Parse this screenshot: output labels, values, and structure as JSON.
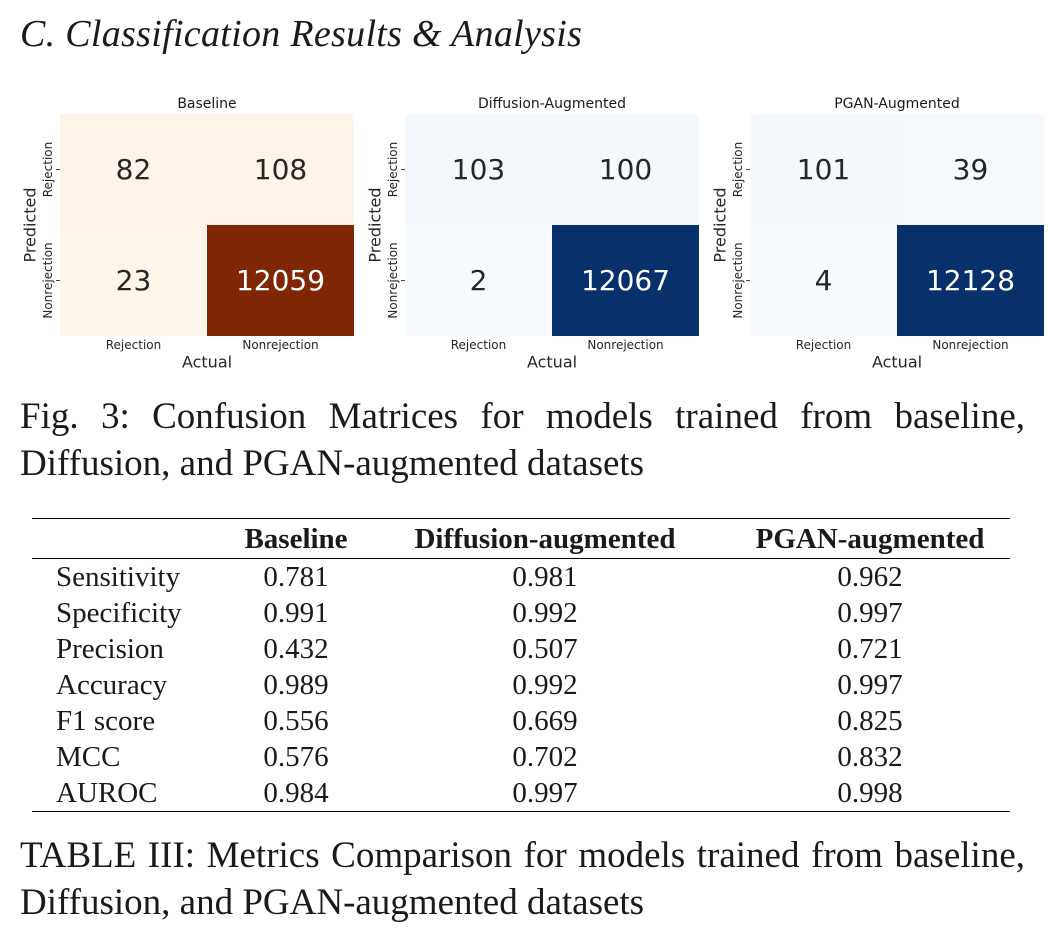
{
  "section_title": "C.  Classification Results & Analysis",
  "chart_data": [
    {
      "type": "heatmap",
      "title": "Baseline",
      "xlabel": "Actual",
      "ylabel": "Predicted",
      "x_categories": [
        "Rejection",
        "Nonrejection"
      ],
      "y_categories": [
        "Rejection",
        "Nonrejection"
      ],
      "values": [
        [
          82,
          108
        ],
        [
          23,
          12059
        ]
      ],
      "colormap": "Oranges",
      "colors": {
        "low": "#fff5eb",
        "high": "#7f2704"
      }
    },
    {
      "type": "heatmap",
      "title": "Diffusion-Augmented",
      "xlabel": "Actual",
      "ylabel": "Predicted",
      "x_categories": [
        "Rejection",
        "Nonrejection"
      ],
      "y_categories": [
        "Rejection",
        "Nonrejection"
      ],
      "values": [
        [
          103,
          100
        ],
        [
          2,
          12067
        ]
      ],
      "colormap": "Blues",
      "colors": {
        "low": "#f7fbff",
        "high": "#08306b"
      }
    },
    {
      "type": "heatmap",
      "title": "PGAN-Augmented",
      "xlabel": "Actual",
      "ylabel": "Predicted",
      "x_categories": [
        "Rejection",
        "Nonrejection"
      ],
      "y_categories": [
        "Rejection",
        "Nonrejection"
      ],
      "values": [
        [
          101,
          39
        ],
        [
          4,
          12128
        ]
      ],
      "colormap": "Blues",
      "colors": {
        "low": "#f7fbff",
        "high": "#08306b"
      }
    }
  ],
  "figure_caption": "Fig. 3: Confusion Matrices for models trained from baseline, Diffusion, and PGAN-augmented datasets",
  "table": {
    "headers": [
      "",
      "Baseline",
      "Diffusion-augmented",
      "PGAN-augmented"
    ],
    "rows": [
      [
        "Sensitivity",
        "0.781",
        "0.981",
        "0.962"
      ],
      [
        "Specificity",
        "0.991",
        "0.992",
        "0.997"
      ],
      [
        "Precision",
        "0.432",
        "0.507",
        "0.721"
      ],
      [
        "Accuracy",
        "0.989",
        "0.992",
        "0.997"
      ],
      [
        "F1 score",
        "0.556",
        "0.669",
        "0.825"
      ],
      [
        "MCC",
        "0.576",
        "0.702",
        "0.832"
      ],
      [
        "AUROC",
        "0.984",
        "0.997",
        "0.998"
      ]
    ]
  },
  "table_caption": "TABLE III: Metrics Comparison for models trained from baseline, Diffusion, and PGAN-augmented datasets"
}
